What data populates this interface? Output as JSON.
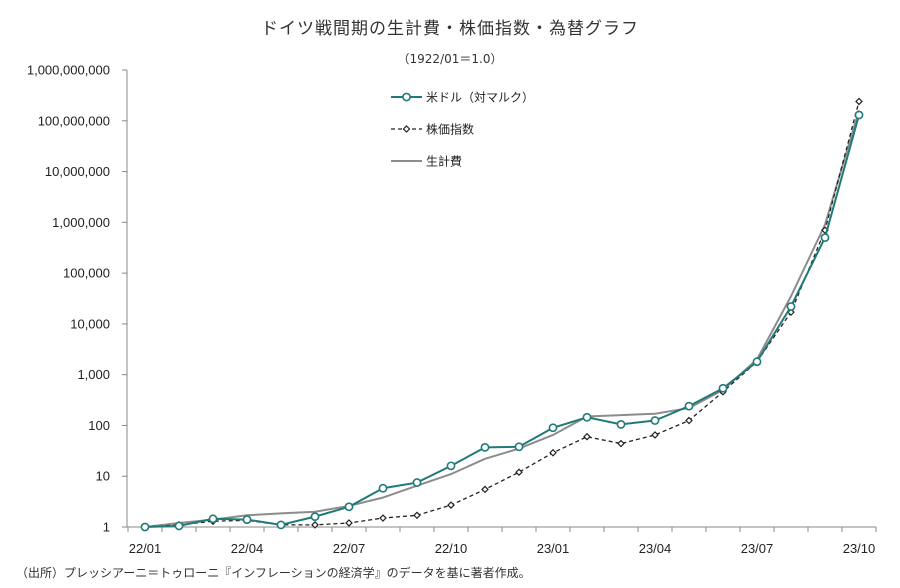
{
  "chart_data": {
    "type": "line",
    "title": "ドイツ戦間期の生計費・株価指数・為替グラフ",
    "subtitle": "（1922/01＝1.0）",
    "source": "（出所）プレッシアーニ＝トゥローニ『インフレーションの経済学』のデータを基に著者作成。",
    "y_scale": "log",
    "ylim": [
      1,
      1000000000
    ],
    "y_ticks": [
      {
        "value": 1,
        "label": "1"
      },
      {
        "value": 10,
        "label": "10"
      },
      {
        "value": 100,
        "label": "100"
      },
      {
        "value": 1000,
        "label": "1,000"
      },
      {
        "value": 10000,
        "label": "10,000"
      },
      {
        "value": 100000,
        "label": "100,000"
      },
      {
        "value": 1000000,
        "label": "1,000,000"
      },
      {
        "value": 10000000,
        "label": "10,000,000"
      },
      {
        "value": 100000000,
        "label": "100,000,000"
      },
      {
        "value": 1000000000,
        "label": "1,000,000,000"
      }
    ],
    "x": [
      "22/01",
      "22/02",
      "22/03",
      "22/04",
      "22/05",
      "22/06",
      "22/07",
      "22/08",
      "22/09",
      "22/10",
      "22/11",
      "22/12",
      "23/01",
      "23/02",
      "23/03",
      "23/04",
      "23/05",
      "23/06",
      "23/07",
      "23/08",
      "23/09",
      "23/10"
    ],
    "x_tick_labels": [
      "22/01",
      "22/04",
      "22/07",
      "22/10",
      "23/01",
      "23/04",
      "23/07",
      "23/10"
    ],
    "grid": false,
    "legend_position": "top-center",
    "series": [
      {
        "name": "米ドル（対マルク）",
        "style": "solid-circle",
        "color": "#1f7a78",
        "values": [
          1,
          1.05,
          1.45,
          1.4,
          1.1,
          1.6,
          2.5,
          5.8,
          7.5,
          16,
          37,
          38,
          90,
          145,
          105,
          125,
          240,
          540,
          1800,
          22000,
          500000,
          130000000
        ]
      },
      {
        "name": "株価指数",
        "style": "dashed-diamond",
        "color": "#222222",
        "values": [
          1,
          1.1,
          1.3,
          1.35,
          1.1,
          1.1,
          1.2,
          1.5,
          1.7,
          2.7,
          5.5,
          12,
          29,
          60,
          44,
          65,
          125,
          460,
          1800,
          17000,
          700000,
          240000000
        ]
      },
      {
        "name": "生計費",
        "style": "solid",
        "color": "#8c8c8c",
        "values": [
          1,
          1.2,
          1.4,
          1.7,
          1.85,
          2.0,
          2.6,
          3.8,
          6.5,
          11,
          22,
          35,
          65,
          150,
          160,
          170,
          220,
          500,
          2000,
          35000,
          900000,
          160000000
        ]
      }
    ]
  }
}
